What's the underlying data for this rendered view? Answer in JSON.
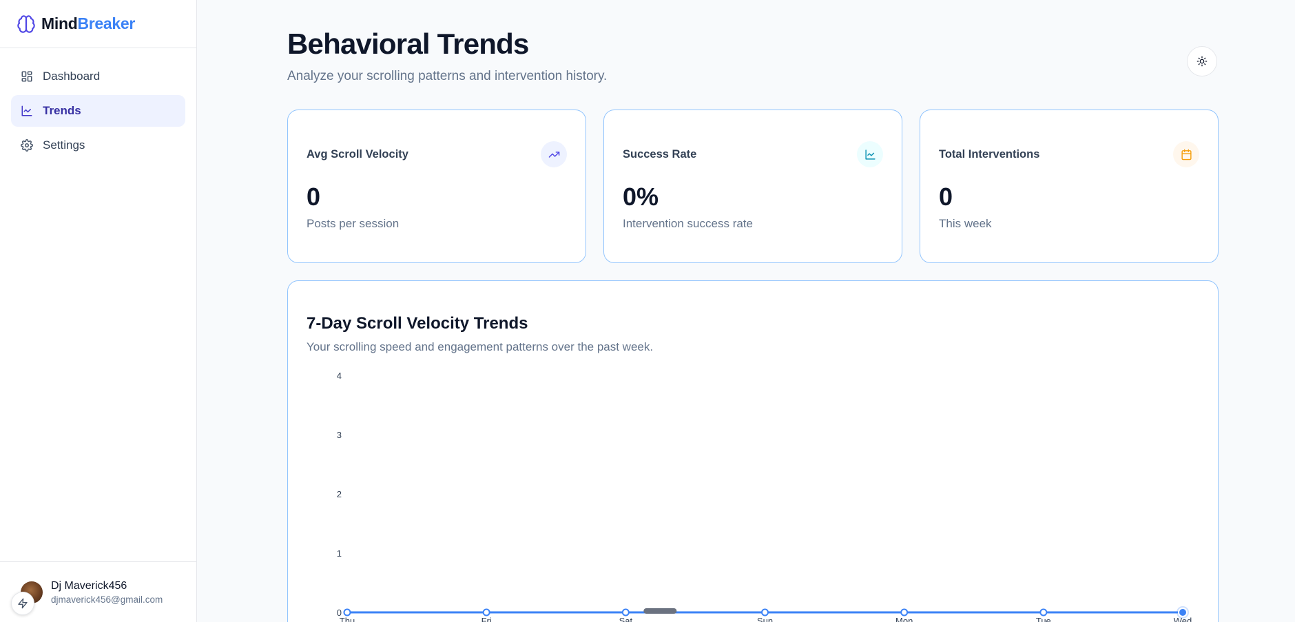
{
  "brand": {
    "name_part1": "Mind",
    "name_part2": "Breaker"
  },
  "sidebar": {
    "items": [
      {
        "label": "Dashboard",
        "icon": "dashboard-icon",
        "active": false
      },
      {
        "label": "Trends",
        "icon": "line-chart-icon",
        "active": true
      },
      {
        "label": "Settings",
        "icon": "gear-icon",
        "active": false
      }
    ]
  },
  "user": {
    "name": "Dj Maverick456",
    "email": "djmaverick456@gmail.com"
  },
  "header": {
    "title": "Behavioral Trends",
    "subtitle": "Analyze your scrolling patterns and intervention history."
  },
  "cards": [
    {
      "label": "Avg Scroll Velocity",
      "value": "0",
      "description": "Posts per session",
      "icon": "trending-up-icon",
      "accent": "#4f46e5",
      "icon_bg": "#eef2ff"
    },
    {
      "label": "Success Rate",
      "value": "0%",
      "description": "Intervention success rate",
      "icon": "line-chart-icon",
      "accent": "#0891b2",
      "icon_bg": "#ecfeff"
    },
    {
      "label": "Total Interventions",
      "value": "0",
      "description": "This week",
      "icon": "calendar-icon",
      "accent": "#f59e0b",
      "icon_bg": "#fff7ed"
    }
  ],
  "chart_card": {
    "title": "7-Day Scroll Velocity Trends",
    "subtitle": "Your scrolling speed and engagement patterns over the past week."
  },
  "chart_data": {
    "type": "line",
    "categories": [
      "Thu",
      "Fri",
      "Sat",
      "Sun",
      "Mon",
      "Tue",
      "Wed"
    ],
    "series": [
      {
        "values": [
          0,
          0,
          0,
          0,
          0,
          0,
          0
        ],
        "color": "#3b82f6"
      }
    ],
    "yticks": [
      0,
      1,
      2,
      3,
      4
    ],
    "ylim": [
      0,
      4
    ],
    "grid": false,
    "highlighted_point": "Wed"
  }
}
